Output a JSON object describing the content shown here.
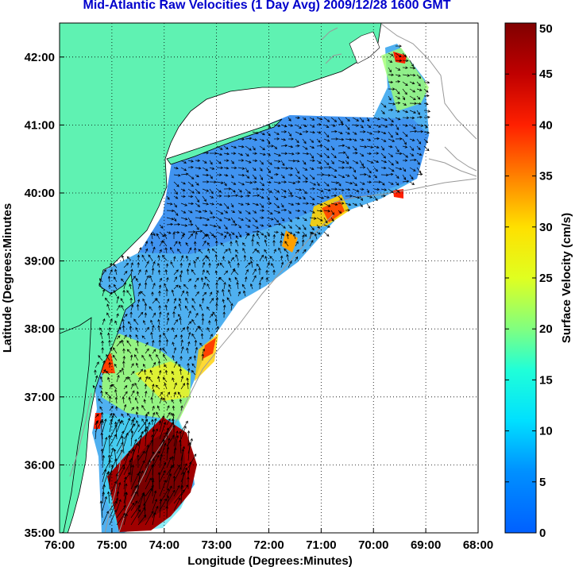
{
  "title": "Mid-Atlantic Raw Velocities (1 Day Avg) 2009/12/28 1600 GMT",
  "map": {
    "x_axis": {
      "label": "Longitude (Degrees:Minutes)",
      "ticks": [
        "76:00",
        "75:00",
        "74:00",
        "73:00",
        "72:00",
        "71:00",
        "70:00",
        "69:00",
        "68:00"
      ],
      "range": [
        -76,
        -68
      ]
    },
    "y_axis": {
      "label": "Latitude (Degrees:Minutes",
      "ticks": [
        "35:00",
        "36:00",
        "37:00",
        "38:00",
        "39:00",
        "40:00",
        "41:00",
        "42:00"
      ],
      "range": [
        35,
        42.5
      ]
    },
    "grid": "dotted",
    "land_color": "#5ff2b2",
    "water_mask_color": "#ffffff",
    "bathymetry_color": "#999999"
  },
  "colorbar": {
    "label": "Surface Velocity (cm/s)",
    "min": 0,
    "max": 50,
    "ticks": [
      "0",
      "5",
      "10",
      "15",
      "20",
      "25",
      "30",
      "35",
      "40",
      "45",
      "50"
    ],
    "colormap": "jet"
  },
  "chart_data": {
    "type": "heatmap",
    "title": "Mid-Atlantic Raw Velocities (1 Day Avg) 2009/12/28 1600 GMT",
    "xlabel": "Longitude (Degrees:Minutes)",
    "ylabel": "Latitude (Degrees:Minutes",
    "xlim": [
      -76,
      -68
    ],
    "ylim": [
      35,
      42.5
    ],
    "zlabel": "Surface Velocity (cm/s)",
    "zlim": [
      0,
      50
    ],
    "regions": [
      {
        "lon": -73.8,
        "lat": 35.8,
        "speed_cm_s": 48
      },
      {
        "lon": -74.5,
        "lat": 37.2,
        "speed_cm_s": 24
      },
      {
        "lon": -73.3,
        "lat": 37.5,
        "speed_cm_s": 30
      },
      {
        "lon": -71.1,
        "lat": 39.9,
        "speed_cm_s": 33
      },
      {
        "lon": -73.5,
        "lat": 39.2,
        "speed_cm_s": 10
      },
      {
        "lon": -70.3,
        "lat": 40.7,
        "speed_cm_s": 9
      },
      {
        "lon": -72.5,
        "lat": 40.0,
        "speed_cm_s": 8
      },
      {
        "lon": -69.5,
        "lat": 41.9,
        "speed_cm_s": 22
      }
    ]
  }
}
